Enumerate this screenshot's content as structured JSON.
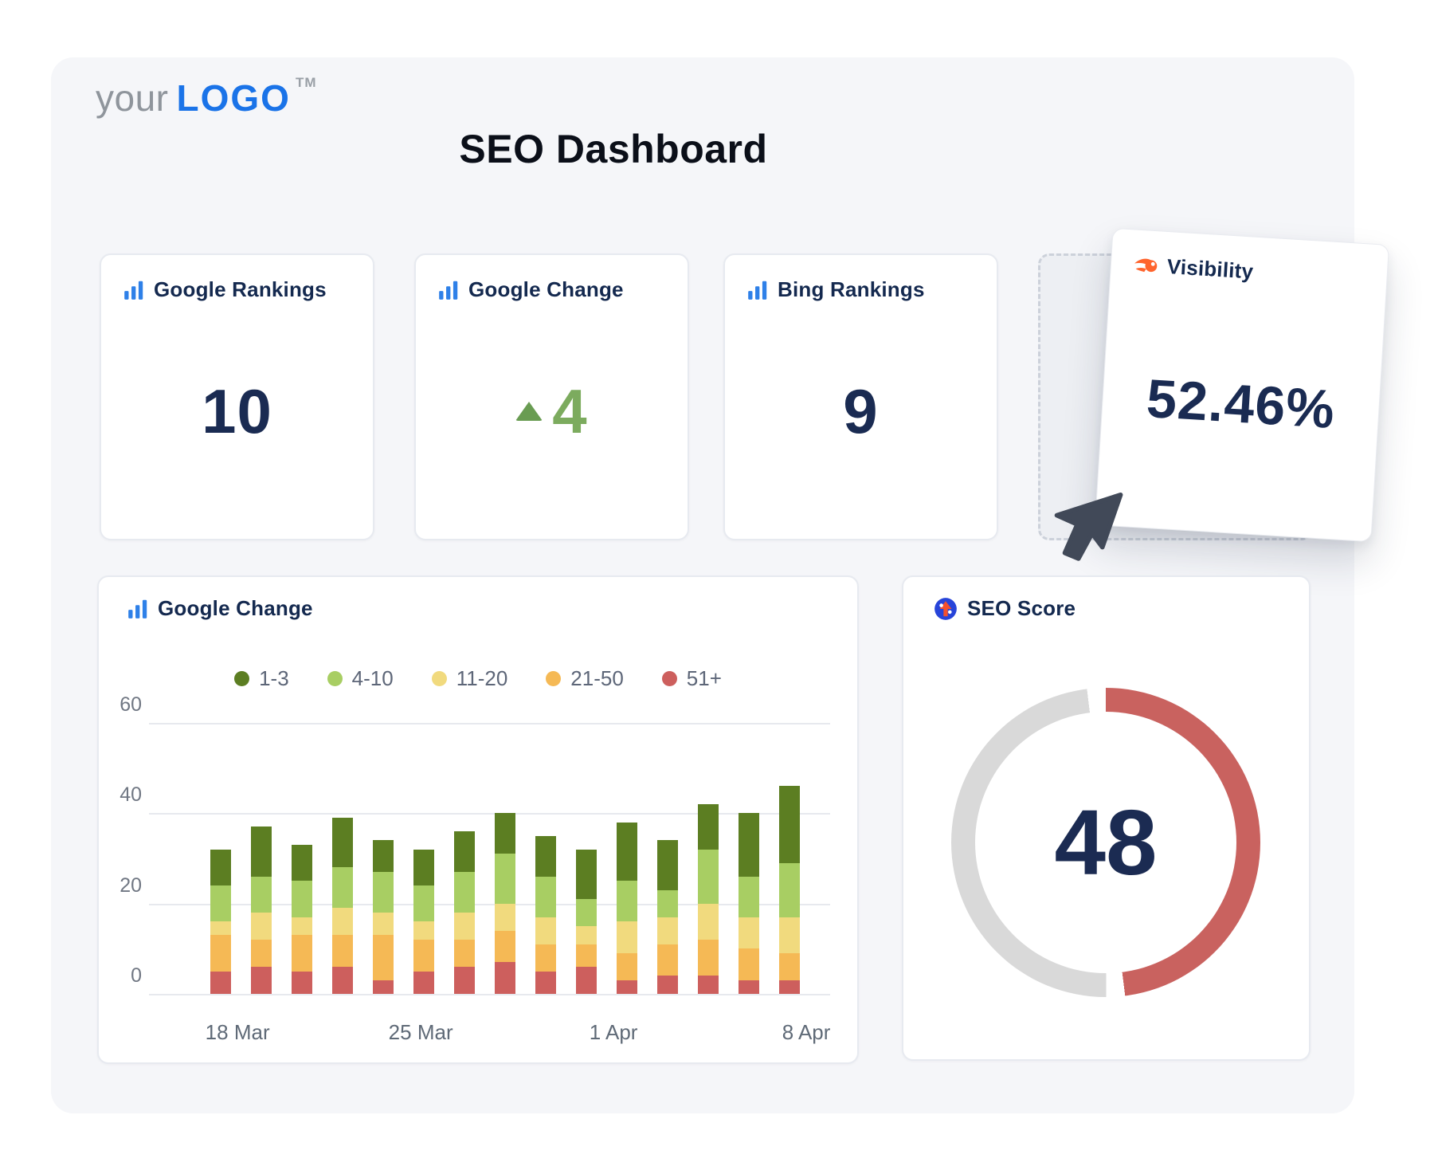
{
  "logo": {
    "prefix": "your",
    "brand": "LOGO",
    "tm": "TM"
  },
  "title": "SEO Dashboard",
  "colors": {
    "navy": "#14294f",
    "stat_number": "#1a2b52",
    "green_number": "#7cab5e",
    "bar_icon_blue": "#2e80e8",
    "semrush_orange": "#ff642d",
    "donut_red": "#c9625f",
    "donut_gray": "#d9d9d9"
  },
  "stats": [
    {
      "label": "Google Rankings",
      "value": "10",
      "icon": "bar-chart-icon"
    },
    {
      "label": "Google Change",
      "value": "4",
      "trend": "up",
      "icon": "bar-chart-icon"
    },
    {
      "label": "Bing Rankings",
      "value": "9",
      "icon": "bar-chart-icon"
    }
  ],
  "visibility": {
    "label": "Visibility",
    "value": "52.46%",
    "icon": "semrush-icon"
  },
  "seo_score": {
    "label": "SEO Score",
    "value": "48",
    "max": 100,
    "icon": "site-audit-icon"
  },
  "chart_data": {
    "type": "stacked-bar",
    "title": "Google Change",
    "icon": "bar-chart-icon",
    "ylim": [
      0,
      60
    ],
    "yticks": [
      0,
      20,
      40,
      60
    ],
    "grid": true,
    "legend_position": "top-center",
    "legend": [
      {
        "label": "1-3",
        "color": "#5c7e22"
      },
      {
        "label": "4-10",
        "color": "#a8ce63"
      },
      {
        "label": "11-20",
        "color": "#f1da7e"
      },
      {
        "label": "21-50",
        "color": "#f5b955"
      },
      {
        "label": "51+",
        "color": "#cd5f5d"
      }
    ],
    "series": [
      {
        "name": "1-3",
        "values": [
          8,
          11,
          8,
          11,
          7,
          8,
          9,
          9,
          9,
          11,
          13,
          11,
          10,
          14,
          17
        ]
      },
      {
        "name": "4-10",
        "values": [
          8,
          8,
          8,
          9,
          9,
          8,
          9,
          11,
          9,
          6,
          9,
          6,
          12,
          9,
          12
        ]
      },
      {
        "name": "11-20",
        "values": [
          3,
          6,
          4,
          6,
          5,
          4,
          6,
          6,
          6,
          4,
          7,
          6,
          8,
          7,
          8
        ]
      },
      {
        "name": "21-50",
        "values": [
          8,
          6,
          8,
          7,
          10,
          7,
          6,
          7,
          6,
          5,
          6,
          7,
          8,
          7,
          6
        ]
      },
      {
        "name": "51+",
        "values": [
          5,
          6,
          5,
          6,
          3,
          5,
          6,
          7,
          5,
          6,
          3,
          4,
          4,
          3,
          3
        ]
      }
    ],
    "x_axis_labels": [
      {
        "label": "18 Mar",
        "percent": 13.0
      },
      {
        "label": "25 Mar",
        "percent": 39.9
      },
      {
        "label": "1 Apr",
        "percent": 68.2
      },
      {
        "label": "8 Apr",
        "percent": 96.5
      }
    ]
  }
}
